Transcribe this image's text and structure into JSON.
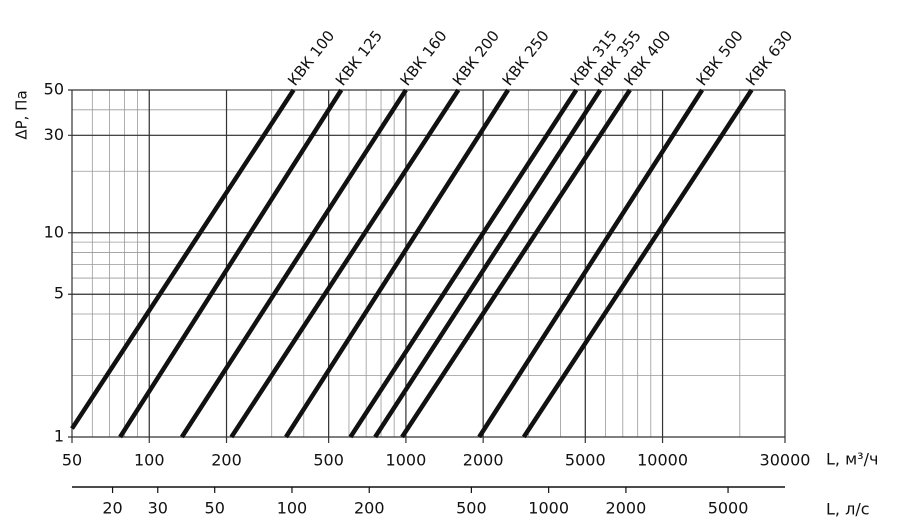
{
  "chart_data": {
    "type": "line",
    "xlabel": "L, м³/ч",
    "x2label": "L, л/с",
    "ylabel": "ΔP, Па",
    "log_x": true,
    "log_y": true,
    "grid": true,
    "xlim": [
      50,
      30000
    ],
    "xticks": [
      50,
      100,
      200,
      500,
      1000,
      2000,
      5000,
      10000,
      30000
    ],
    "xgrid": [
      50,
      60,
      70,
      80,
      90,
      100,
      200,
      300,
      400,
      500,
      600,
      700,
      800,
      900,
      1000,
      2000,
      3000,
      4000,
      5000,
      6000,
      7000,
      8000,
      9000,
      10000,
      20000,
      30000
    ],
    "ylim": [
      1,
      50
    ],
    "yticks": [
      1,
      5,
      10,
      30,
      50
    ],
    "ygrid": [
      1,
      2,
      3,
      4,
      5,
      6,
      7,
      8,
      9,
      10,
      20,
      30,
      40,
      50
    ],
    "x2lim": [
      13.9,
      8333
    ],
    "x2ticks": [
      20,
      30,
      50,
      100,
      200,
      500,
      1000,
      2000,
      5000
    ],
    "series": [
      {
        "name": "КВК 100",
        "color": "#111111",
        "x": [
          50,
          365
        ],
        "values": [
          1.1,
          50
        ]
      },
      {
        "name": "КВК 125",
        "color": "#111111",
        "x": [
          77,
          560
        ],
        "values": [
          1,
          50
        ]
      },
      {
        "name": "КВК 160",
        "color": "#111111",
        "x": [
          134,
          1000
        ],
        "values": [
          1,
          50
        ]
      },
      {
        "name": "КВК 200",
        "color": "#111111",
        "x": [
          209,
          1600
        ],
        "values": [
          1,
          50
        ]
      },
      {
        "name": "КВК 250",
        "color": "#111111",
        "x": [
          341,
          2500
        ],
        "values": [
          1,
          50
        ]
      },
      {
        "name": "КВК 315",
        "color": "#111111",
        "x": [
          608,
          4610
        ],
        "values": [
          1,
          50
        ]
      },
      {
        "name": "КВК 355",
        "color": "#111111",
        "x": [
          759,
          5715
        ],
        "values": [
          1,
          50
        ]
      },
      {
        "name": "КВК 400",
        "color": "#111111",
        "x": [
          966,
          7460
        ],
        "values": [
          1,
          50
        ]
      },
      {
        "name": "КВК 500",
        "color": "#111111",
        "x": [
          1930,
          14260
        ],
        "values": [
          1,
          50
        ]
      },
      {
        "name": "КВК 630",
        "color": "#111111",
        "x": [
          2880,
          22230
        ],
        "values": [
          1,
          50
        ]
      }
    ]
  }
}
